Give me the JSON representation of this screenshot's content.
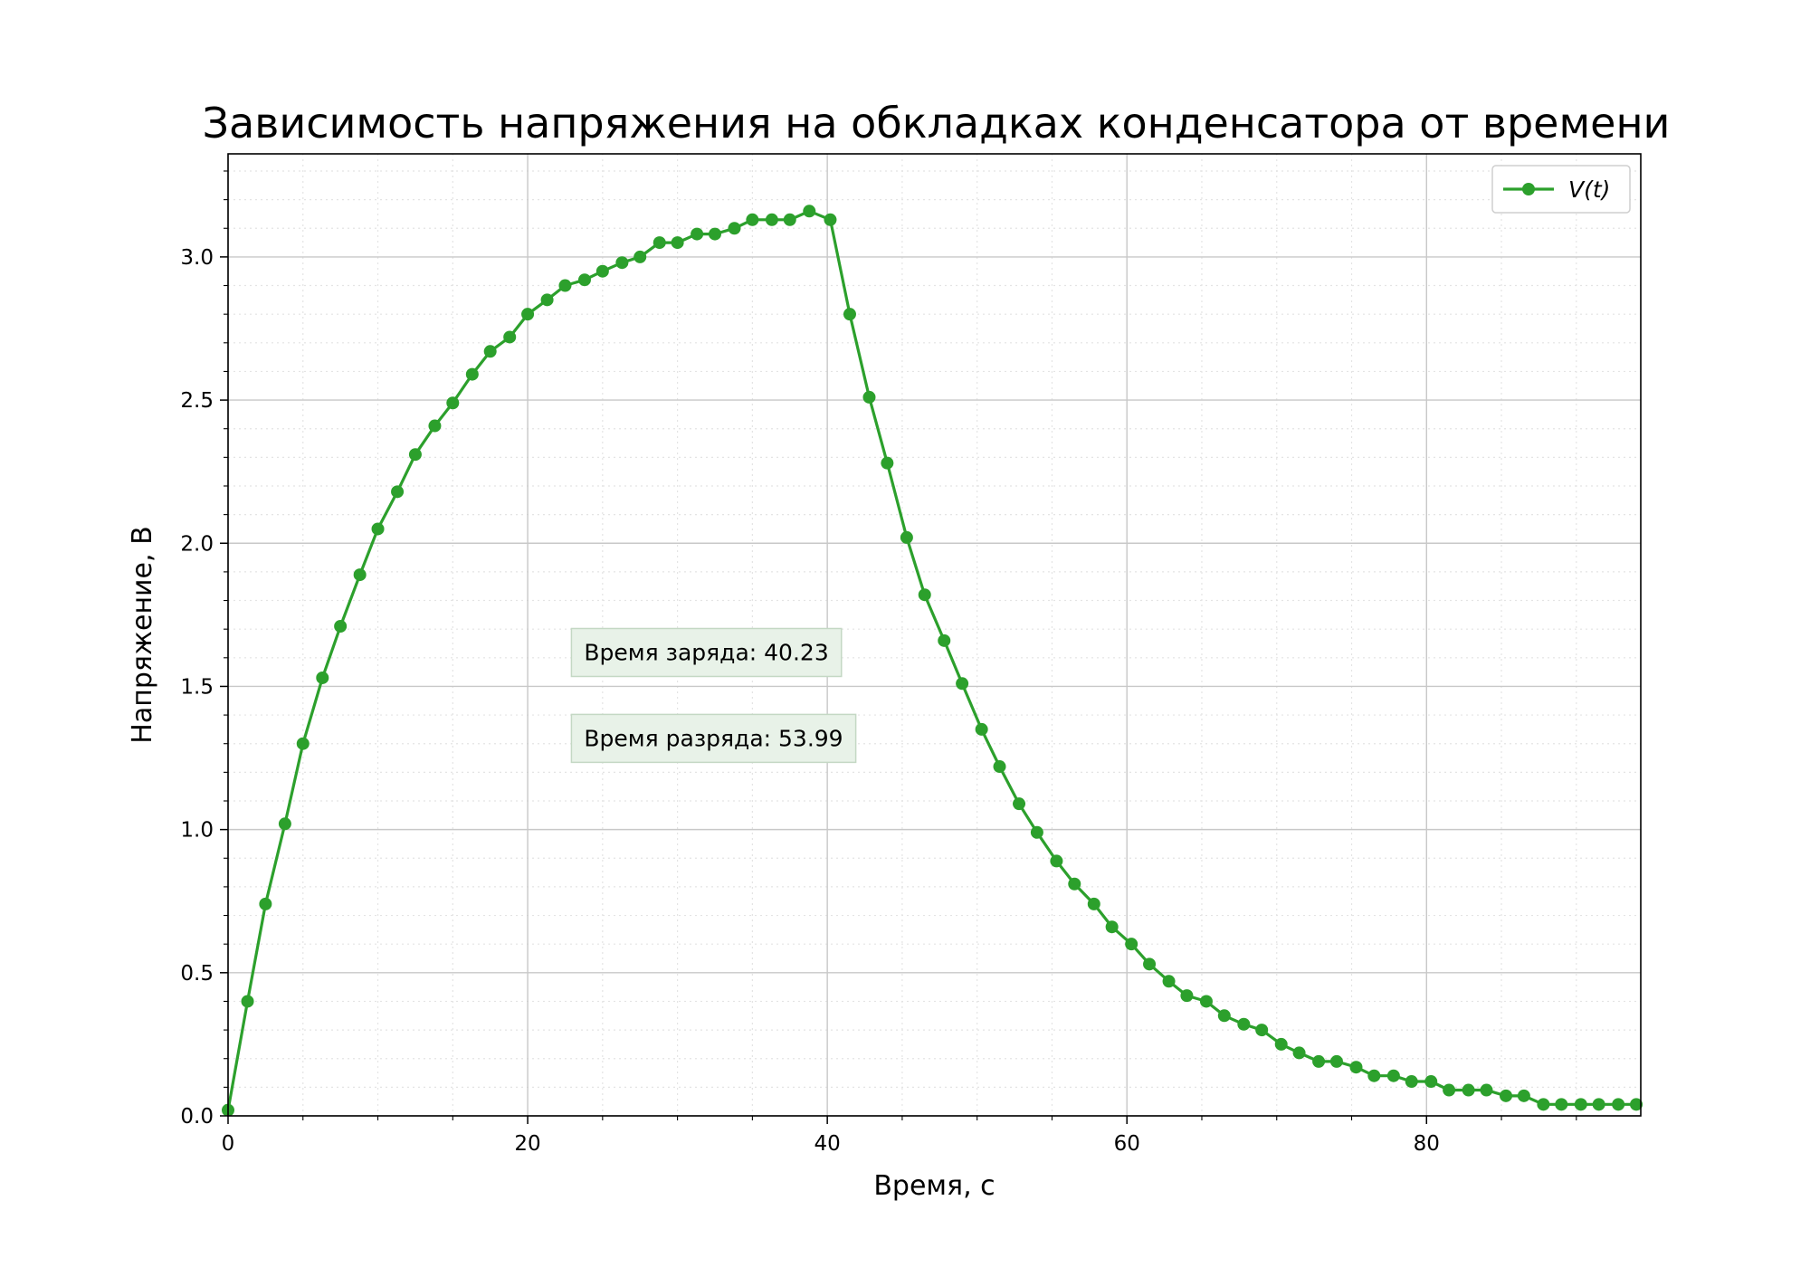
{
  "chart_data": {
    "type": "line",
    "title": "Зависимость напряжения на обкладках конденсатора от времени",
    "xlabel": "Время, с",
    "ylabel": "Напряжение, В",
    "xlim": [
      0,
      94.3
    ],
    "ylim": [
      0,
      3.36
    ],
    "x_ticks": [
      0,
      20,
      40,
      60,
      80
    ],
    "x_tick_labels": [
      "0",
      "20",
      "40",
      "60",
      "80"
    ],
    "y_ticks": [
      0,
      0.5,
      1.0,
      1.5,
      2.0,
      2.5,
      3.0
    ],
    "y_tick_labels": [
      "0.0",
      "0.5",
      "1.0",
      "1.5",
      "2.0",
      "2.5",
      "3.0"
    ],
    "grid": "major solid, minor dotted",
    "legend_position": "top-right",
    "color": "#2ca02c",
    "series": [
      {
        "name": "V(t)",
        "marker": "circle",
        "x": [
          0.0,
          1.3,
          2.5,
          3.8,
          5.0,
          6.3,
          7.5,
          8.8,
          10.0,
          11.3,
          12.5,
          13.8,
          15.0,
          16.3,
          17.5,
          18.8,
          20.0,
          21.3,
          22.5,
          23.8,
          25.0,
          26.3,
          27.5,
          28.8,
          30.0,
          31.3,
          32.5,
          33.8,
          35.0,
          36.3,
          37.5,
          38.8,
          40.2,
          41.5,
          42.8,
          44.0,
          45.3,
          46.5,
          47.8,
          49.0,
          50.3,
          51.5,
          52.8,
          54.0,
          55.3,
          56.5,
          57.8,
          59.0,
          60.3,
          61.5,
          62.8,
          64.0,
          65.3,
          66.5,
          67.8,
          69.0,
          70.3,
          71.5,
          72.8,
          74.0,
          75.3,
          76.5,
          77.8,
          79.0,
          80.3,
          81.5,
          82.8,
          84.0,
          85.3,
          86.5,
          87.8,
          89.0,
          90.3,
          91.5,
          92.8,
          94.0
        ],
        "y": [
          0.02,
          0.4,
          0.74,
          1.02,
          1.3,
          1.53,
          1.71,
          1.89,
          2.05,
          2.18,
          2.31,
          2.41,
          2.49,
          2.59,
          2.67,
          2.72,
          2.8,
          2.85,
          2.9,
          2.92,
          2.95,
          2.98,
          3.0,
          3.05,
          3.05,
          3.08,
          3.08,
          3.1,
          3.13,
          3.13,
          3.13,
          3.16,
          3.13,
          2.8,
          2.51,
          2.28,
          2.02,
          1.82,
          1.66,
          1.51,
          1.35,
          1.22,
          1.09,
          0.99,
          0.89,
          0.81,
          0.74,
          0.66,
          0.6,
          0.53,
          0.47,
          0.42,
          0.4,
          0.35,
          0.32,
          0.3,
          0.25,
          0.22,
          0.19,
          0.19,
          0.17,
          0.14,
          0.14,
          0.12,
          0.12,
          0.09,
          0.09,
          0.09,
          0.07,
          0.07,
          0.04,
          0.04,
          0.04,
          0.04,
          0.04,
          0.04
        ]
      }
    ],
    "annotations": [
      {
        "text": "Время заряда: 40.23",
        "x": 22.8,
        "y": 1.62
      },
      {
        "text": "Время разряда: 53.99",
        "x": 22.8,
        "y": 1.32
      }
    ]
  }
}
